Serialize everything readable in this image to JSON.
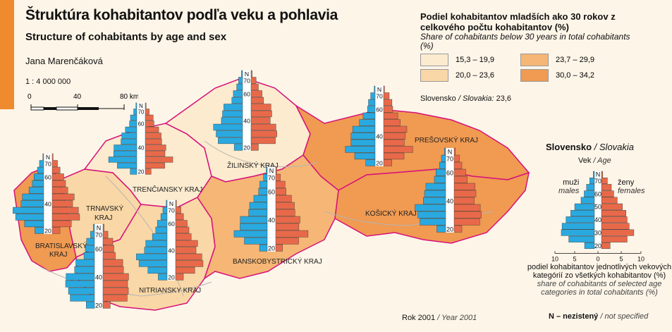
{
  "title": "Štruktúra kohabitantov podľa veku a pohlavia",
  "subtitle": "Structure of cohabitants by age and sex",
  "author": "Jana Marenčáková",
  "scale": "1 : 4 000 000",
  "scalebar": {
    "ticks": [
      "0",
      "40",
      "80 km"
    ]
  },
  "legend": {
    "title_sk": "Podiel kohabitantov mladších ako 30 rokov z celkového počtu kohabitantov (%)",
    "title_en": "Share of cohabitants below 30 years in total cohabitants (%)",
    "classes": [
      {
        "label": "15,3 – 19,9",
        "color": "#fcebcf"
      },
      {
        "label": "23,7 – 29,9",
        "color": "#f6b675"
      },
      {
        "label": "20,0 – 23,6",
        "color": "#f9d7a6"
      },
      {
        "label": "30,0 – 34,2",
        "color": "#f09a52"
      }
    ],
    "national_label": "Slovensko",
    "national_label_en": "/ Slovakia:",
    "national_value": "23,6"
  },
  "colors": {
    "male": "#29a9e0",
    "female": "#e8694a",
    "border": "#d6127a",
    "rivers": "#b5b5b5"
  },
  "regions": [
    {
      "name": "BRATISLAVSKÝ\nKRAJ",
      "class": 3
    },
    {
      "name": "TRNAVSKÝ\nKRAJ",
      "class": 2
    },
    {
      "name": "TRENČIANSKY KRAJ",
      "class": 0
    },
    {
      "name": "NITRIANSKY KRAJ",
      "class": 2
    },
    {
      "name": "ŽILINSKÝ KRAJ",
      "class": 0
    },
    {
      "name": "BANSKOBYSTRICKÝ KRAJ",
      "class": 1
    },
    {
      "name": "PREŠOVSKÝ KRAJ",
      "class": 3
    },
    {
      "name": "KOŠICKÝ KRAJ",
      "class": 3
    }
  ],
  "pyramid_age_labels": [
    "N",
    "70",
    "60",
    "40",
    "20"
  ],
  "inset": {
    "title": "Slovensko",
    "title_en": "/ Slovakia",
    "age_label": "Vek",
    "age_label_en": "/ Age",
    "male": "muži",
    "male_en": "males",
    "female": "ženy",
    "female_en": "females",
    "age_ticks": [
      "N",
      "70",
      "60",
      "50",
      "40",
      "30",
      "20"
    ],
    "axis_ticks": [
      "10",
      "5",
      "0",
      "5",
      "10"
    ],
    "caption_sk": "podiel kohabitantov jednotlivých vekových kategórií zo všetkých kohabitantov (%)",
    "caption_en": "share of cohabitants of selected age categories in total cohabitants (%)"
  },
  "year": "Rok 2001",
  "year_en": "/ Year 2001",
  "n_note": "N – nezistený",
  "n_note_en": "/ not specified",
  "chart_data": {
    "type": "bar",
    "title": "Slovensko / Slovakia",
    "categories": [
      "N",
      "70",
      "65",
      "60",
      "55",
      "50",
      "45",
      "40",
      "35",
      "30",
      "25",
      "20"
    ],
    "series": [
      {
        "name": "muži",
        "values": [
          0.3,
          1.2,
          2.0,
          2.6,
          3.4,
          5.0,
          6.0,
          7.2,
          8.2,
          8.4,
          6.5,
          2.5
        ]
      },
      {
        "name": "ženy",
        "values": [
          0.3,
          1.5,
          2.5,
          3.1,
          4.0,
          5.3,
          6.2,
          6.5,
          7.0,
          8.2,
          6.5,
          2.2
        ]
      }
    ],
    "xlim": [
      -10,
      10
    ],
    "xlabel": "podiel kohabitantov jednotlivých vekových kategórií zo všetkých kohabitantov (%)",
    "ylabel": "Vek"
  }
}
